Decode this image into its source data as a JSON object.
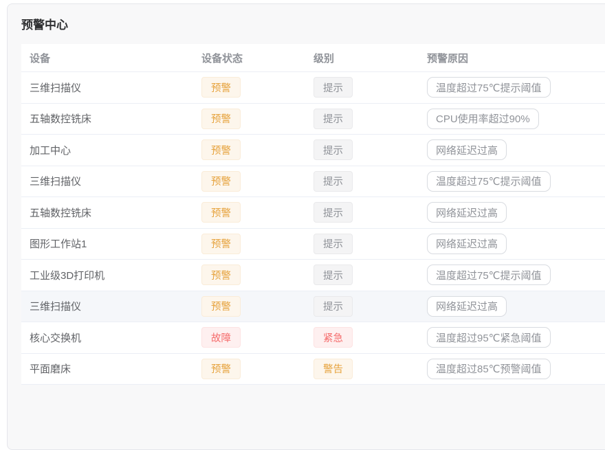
{
  "page": {
    "title": "预警中心"
  },
  "colors": {
    "warning_text": "#e6a23c",
    "warning_bg": "#fdf6ec",
    "info_text": "#909399",
    "info_bg": "#f4f4f5",
    "danger_text": "#f56c6c",
    "danger_bg": "#fef0f0",
    "row_border": "#ebeef5",
    "card_bg": "#f8f8f9"
  },
  "table": {
    "columns": [
      "设备",
      "设备状态",
      "级别",
      "预警原因"
    ],
    "rows": [
      {
        "device": "三维扫描仪",
        "status": "预警",
        "status_type": "warning",
        "level": "提示",
        "level_type": "info",
        "reason": "温度超过75℃提示阈值",
        "highlight": false
      },
      {
        "device": "五轴数控铣床",
        "status": "预警",
        "status_type": "warning",
        "level": "提示",
        "level_type": "info",
        "reason": "CPU使用率超过90%",
        "highlight": false
      },
      {
        "device": "加工中心",
        "status": "预警",
        "status_type": "warning",
        "level": "提示",
        "level_type": "info",
        "reason": "网络延迟过高",
        "highlight": false
      },
      {
        "device": "三维扫描仪",
        "status": "预警",
        "status_type": "warning",
        "level": "提示",
        "level_type": "info",
        "reason": "温度超过75℃提示阈值",
        "highlight": false
      },
      {
        "device": "五轴数控铣床",
        "status": "预警",
        "status_type": "warning",
        "level": "提示",
        "level_type": "info",
        "reason": "网络延迟过高",
        "highlight": false
      },
      {
        "device": "图形工作站1",
        "status": "预警",
        "status_type": "warning",
        "level": "提示",
        "level_type": "info",
        "reason": "网络延迟过高",
        "highlight": false
      },
      {
        "device": "工业级3D打印机",
        "status": "预警",
        "status_type": "warning",
        "level": "提示",
        "level_type": "info",
        "reason": "温度超过75℃提示阈值",
        "highlight": false
      },
      {
        "device": "三维扫描仪",
        "status": "预警",
        "status_type": "warning",
        "level": "提示",
        "level_type": "info",
        "reason": "网络延迟过高",
        "highlight": true
      },
      {
        "device": "核心交换机",
        "status": "故障",
        "status_type": "danger",
        "level": "紧急",
        "level_type": "danger",
        "reason": "温度超过95℃紧急阈值",
        "highlight": false
      },
      {
        "device": "平面磨床",
        "status": "预警",
        "status_type": "warning",
        "level": "警告",
        "level_type": "warning",
        "reason": "温度超过85℃预警阈值",
        "highlight": false
      }
    ]
  }
}
